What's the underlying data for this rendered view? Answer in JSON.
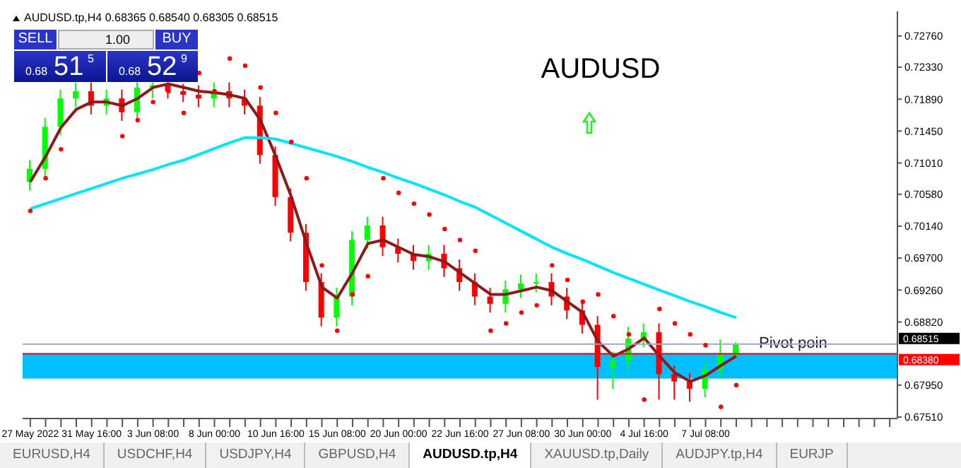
{
  "chart_data": {
    "type": "candlestick",
    "title": "AUDUSD",
    "subtitle": "AUDUSD.tp,H4 0.68365 0.68540 0.68305 0.68515",
    "categories": [
      "27 May 2022",
      null,
      null,
      null,
      "31 May 16:00",
      null,
      null,
      null,
      "3 Jun 08:00",
      null,
      null,
      null,
      "8 Jun 00:00",
      null,
      null,
      null,
      "10 Jun 16:00",
      null,
      null,
      null,
      "15 Jun 08:00",
      null,
      null,
      null,
      "20 Jun 00:00",
      null,
      null,
      null,
      "22 Jun 16:00",
      null,
      null,
      null,
      "27 Jun 08:00",
      null,
      null,
      null,
      "30 Jun 00:00",
      null,
      null,
      null,
      "4 Jul 16:00",
      null,
      null,
      null,
      "7 Jul 08:00",
      null,
      null,
      null,
      null,
      null,
      null,
      null,
      null,
      null,
      null,
      null,
      null
    ],
    "ohlc": [
      [
        0.7075,
        0.7105,
        0.7063,
        0.7093
      ],
      [
        0.7093,
        0.7163,
        0.7081,
        0.7151
      ],
      [
        0.7151,
        0.7202,
        0.7139,
        0.719
      ],
      [
        0.719,
        0.7212,
        0.7178,
        0.72
      ],
      [
        0.72,
        0.7212,
        0.7168,
        0.718
      ],
      [
        0.718,
        0.7202,
        0.7168,
        0.719
      ],
      [
        0.719,
        0.7202,
        0.7159,
        0.7171
      ],
      [
        0.7171,
        0.7212,
        0.7159,
        0.7205
      ],
      [
        0.7205,
        0.7212,
        0.719,
        0.7208
      ],
      [
        0.7208,
        0.7212,
        0.719,
        0.72
      ],
      [
        0.72,
        0.721,
        0.7185,
        0.7195
      ],
      [
        0.7195,
        0.7208,
        0.7178,
        0.719
      ],
      [
        0.719,
        0.7212,
        0.7178,
        0.72
      ],
      [
        0.72,
        0.7212,
        0.7178,
        0.719
      ],
      [
        0.719,
        0.7202,
        0.7168,
        0.718
      ],
      [
        0.718,
        0.7192,
        0.71,
        0.7112
      ],
      [
        0.7112,
        0.7124,
        0.7042,
        0.7054
      ],
      [
        0.7054,
        0.7066,
        0.6993,
        0.7005
      ],
      [
        0.7005,
        0.7017,
        0.6925,
        0.6937
      ],
      [
        0.6937,
        0.6949,
        0.6876,
        0.6888
      ],
      [
        0.6888,
        0.6929,
        0.6876,
        0.6917
      ],
      [
        0.6917,
        0.7007,
        0.6905,
        0.6995
      ],
      [
        0.6995,
        0.7027,
        0.6983,
        0.7015
      ],
      [
        0.7015,
        0.7027,
        0.6973,
        0.6985
      ],
      [
        0.6985,
        0.6997,
        0.6964,
        0.6976
      ],
      [
        0.6976,
        0.6988,
        0.6954,
        0.6966
      ],
      [
        0.6966,
        0.6988,
        0.6954,
        0.6976
      ],
      [
        0.6976,
        0.6988,
        0.6944,
        0.6956
      ],
      [
        0.6956,
        0.6968,
        0.6925,
        0.6937
      ],
      [
        0.6937,
        0.6949,
        0.6905,
        0.6917
      ],
      [
        0.6917,
        0.6929,
        0.6895,
        0.6907
      ],
      [
        0.6907,
        0.6939,
        0.6895,
        0.6927
      ],
      [
        0.6927,
        0.6947,
        0.6915,
        0.6935
      ],
      [
        0.6935,
        0.6949,
        0.6923,
        0.6937
      ],
      [
        0.6937,
        0.6949,
        0.6905,
        0.6917
      ],
      [
        0.6917,
        0.6929,
        0.6886,
        0.6898
      ],
      [
        0.6898,
        0.691,
        0.6866,
        0.6878
      ],
      [
        0.6878,
        0.689,
        0.6775,
        0.682
      ],
      [
        0.682,
        0.6841,
        0.679,
        0.6829
      ],
      [
        0.6829,
        0.6875,
        0.6817,
        0.6859
      ],
      [
        0.6859,
        0.688,
        0.6847,
        0.6868
      ],
      [
        0.6868,
        0.688,
        0.6775,
        0.681
      ],
      [
        0.681,
        0.6822,
        0.6775,
        0.68
      ],
      [
        0.68,
        0.6812,
        0.6772,
        0.679
      ],
      [
        0.679,
        0.6828,
        0.6778,
        0.6816
      ],
      [
        0.6816,
        0.6858,
        0.6804,
        0.6837
      ],
      [
        0.68365,
        0.6854,
        0.68305,
        0.68515
      ],
      null,
      null,
      null,
      null,
      null,
      null,
      null,
      null,
      null,
      null
    ],
    "colors": [
      "#00ff00",
      "#00ff00",
      "#00ff00",
      "#00ff00",
      "#ff0000",
      "#00ff00",
      "#ff0000",
      "#00ff00",
      "#00ff00",
      "#ff0000",
      "#ff0000",
      "#ff0000",
      "#00ff00",
      "#ff0000",
      "#ff0000",
      "#ff0000",
      "#ff0000",
      "#ff0000",
      "#ff0000",
      "#ff0000",
      "#00ff00",
      "#00ff00",
      "#00ff00",
      "#ff0000",
      "#ff0000",
      "#ff0000",
      "#00ff00",
      "#ff0000",
      "#ff0000",
      "#ff0000",
      "#ff0000",
      "#00ff00",
      "#00ff00",
      "#00ff00",
      "#ff0000",
      "#ff0000",
      "#ff0000",
      "#ff0000",
      "#00ff00",
      "#00ff00",
      "#00ff00",
      "#ff0000",
      "#ff0000",
      "#ff0000",
      "#00ff00",
      "#00ff00",
      "#00ff00",
      null,
      null,
      null,
      null,
      null,
      null,
      null,
      null,
      null,
      null
    ],
    "series": [
      {
        "type": "line",
        "color": "#8b1a1a",
        "values": [
          0.7075,
          0.711,
          0.715,
          0.7175,
          0.7185,
          0.7185,
          0.718,
          0.719,
          0.7205,
          0.721,
          0.7205,
          0.72,
          0.7198,
          0.7195,
          0.719,
          0.716,
          0.711,
          0.7055,
          0.699,
          0.693,
          0.6915,
          0.695,
          0.699,
          0.6995,
          0.6985,
          0.6975,
          0.6972,
          0.6965,
          0.695,
          0.6935,
          0.692,
          0.692,
          0.6925,
          0.693,
          0.6925,
          0.691,
          0.6895,
          0.6855,
          0.6835,
          0.6845,
          0.686,
          0.6835,
          0.6812,
          0.68,
          0.6808,
          0.6822,
          0.6835,
          null,
          null,
          null,
          null,
          null,
          null,
          null,
          null,
          null,
          null
        ]
      },
      {
        "type": "line",
        "color": "#00e5ff",
        "values": [
          0.7038,
          0.7045,
          0.7052,
          0.7059,
          0.7066,
          0.7073,
          0.708,
          0.7086,
          0.7092,
          0.7099,
          0.7105,
          0.7113,
          0.7121,
          0.7129,
          0.7136,
          0.7136,
          0.7134,
          0.7128,
          0.7122,
          0.7116,
          0.711,
          0.7103,
          0.7095,
          0.7088,
          0.708,
          0.7073,
          0.7065,
          0.7057,
          0.7048,
          0.704,
          0.7029,
          0.7018,
          0.7007,
          0.6996,
          0.6985,
          0.6976,
          0.6968,
          0.6959,
          0.695,
          0.6942,
          0.6934,
          0.6926,
          0.6918,
          0.691,
          0.6903,
          0.6895,
          0.6888,
          null,
          null,
          null,
          null,
          null,
          null,
          null,
          null,
          null,
          null
        ]
      },
      {
        "type": "scatter",
        "color": "#ff0000",
        "marker": "circle",
        "values": [
          0.7035,
          0.708,
          0.712,
          null,
          null,
          null,
          0.7138,
          0.716,
          0.7185,
          0.72,
          0.717,
          0.7225,
          0.72,
          0.7245,
          0.7235,
          0.7205,
          0.717,
          0.713,
          0.708,
          0.696,
          0.687,
          0.692,
          0.6945,
          0.708,
          0.706,
          0.7045,
          0.703,
          0.701,
          0.6995,
          0.698,
          0.687,
          0.688,
          0.6895,
          0.6905,
          0.696,
          0.694,
          0.691,
          0.692,
          0.689,
          0.6865,
          0.6775,
          0.69,
          0.688,
          0.6865,
          0.685,
          0.6765,
          0.6795,
          null,
          null,
          null,
          null,
          null,
          null,
          null,
          null,
          null,
          null
        ]
      }
    ],
    "ylim": [
      0.6749,
      0.731
    ],
    "yticks": [
      {
        "value": 0.7276,
        "label": "0.72760"
      },
      {
        "value": 0.7233,
        "label": "0.72330"
      },
      {
        "value": 0.7189,
        "label": "0.71890"
      },
      {
        "value": 0.7145,
        "label": "0.71450"
      },
      {
        "value": 0.7101,
        "label": "0.71010"
      },
      {
        "value": 0.7058,
        "label": "0.70580"
      },
      {
        "value": 0.7014,
        "label": "0.70140"
      },
      {
        "value": 0.697,
        "label": "0.69700"
      },
      {
        "value": 0.6926,
        "label": "0.69260"
      },
      {
        "value": 0.6882,
        "label": "0.68820"
      },
      {
        "value": 0.6795,
        "label": "0.67950"
      },
      {
        "value": 0.6751,
        "label": "0.67510"
      }
    ],
    "ref_lines": [
      {
        "axis": "y",
        "value": 0.68515,
        "label": "0.68515",
        "color": "#a0a8c0"
      },
      {
        "axis": "y",
        "value": 0.6838,
        "label": "0.68380",
        "color": "#ff0000"
      }
    ],
    "bands": [
      {
        "axis": "y",
        "from": 0.6804,
        "to": 0.6839,
        "label": "Pivot poin",
        "color": "#00bfff"
      }
    ],
    "grid": false,
    "legend": false,
    "annotations": [
      "SELL",
      "1.00",
      "BUY",
      "0.68",
      "51",
      "5",
      "0.68",
      "52",
      "9",
      "EURUSD,H4",
      "USDCHF,H4",
      "USDJPY,H4",
      "GBPUSD,H4",
      "AUDUSD.tp,H4",
      "XAUUSD.tp,Daily",
      "AUDJPY.tp,H4",
      "EURJP"
    ]
  }
}
